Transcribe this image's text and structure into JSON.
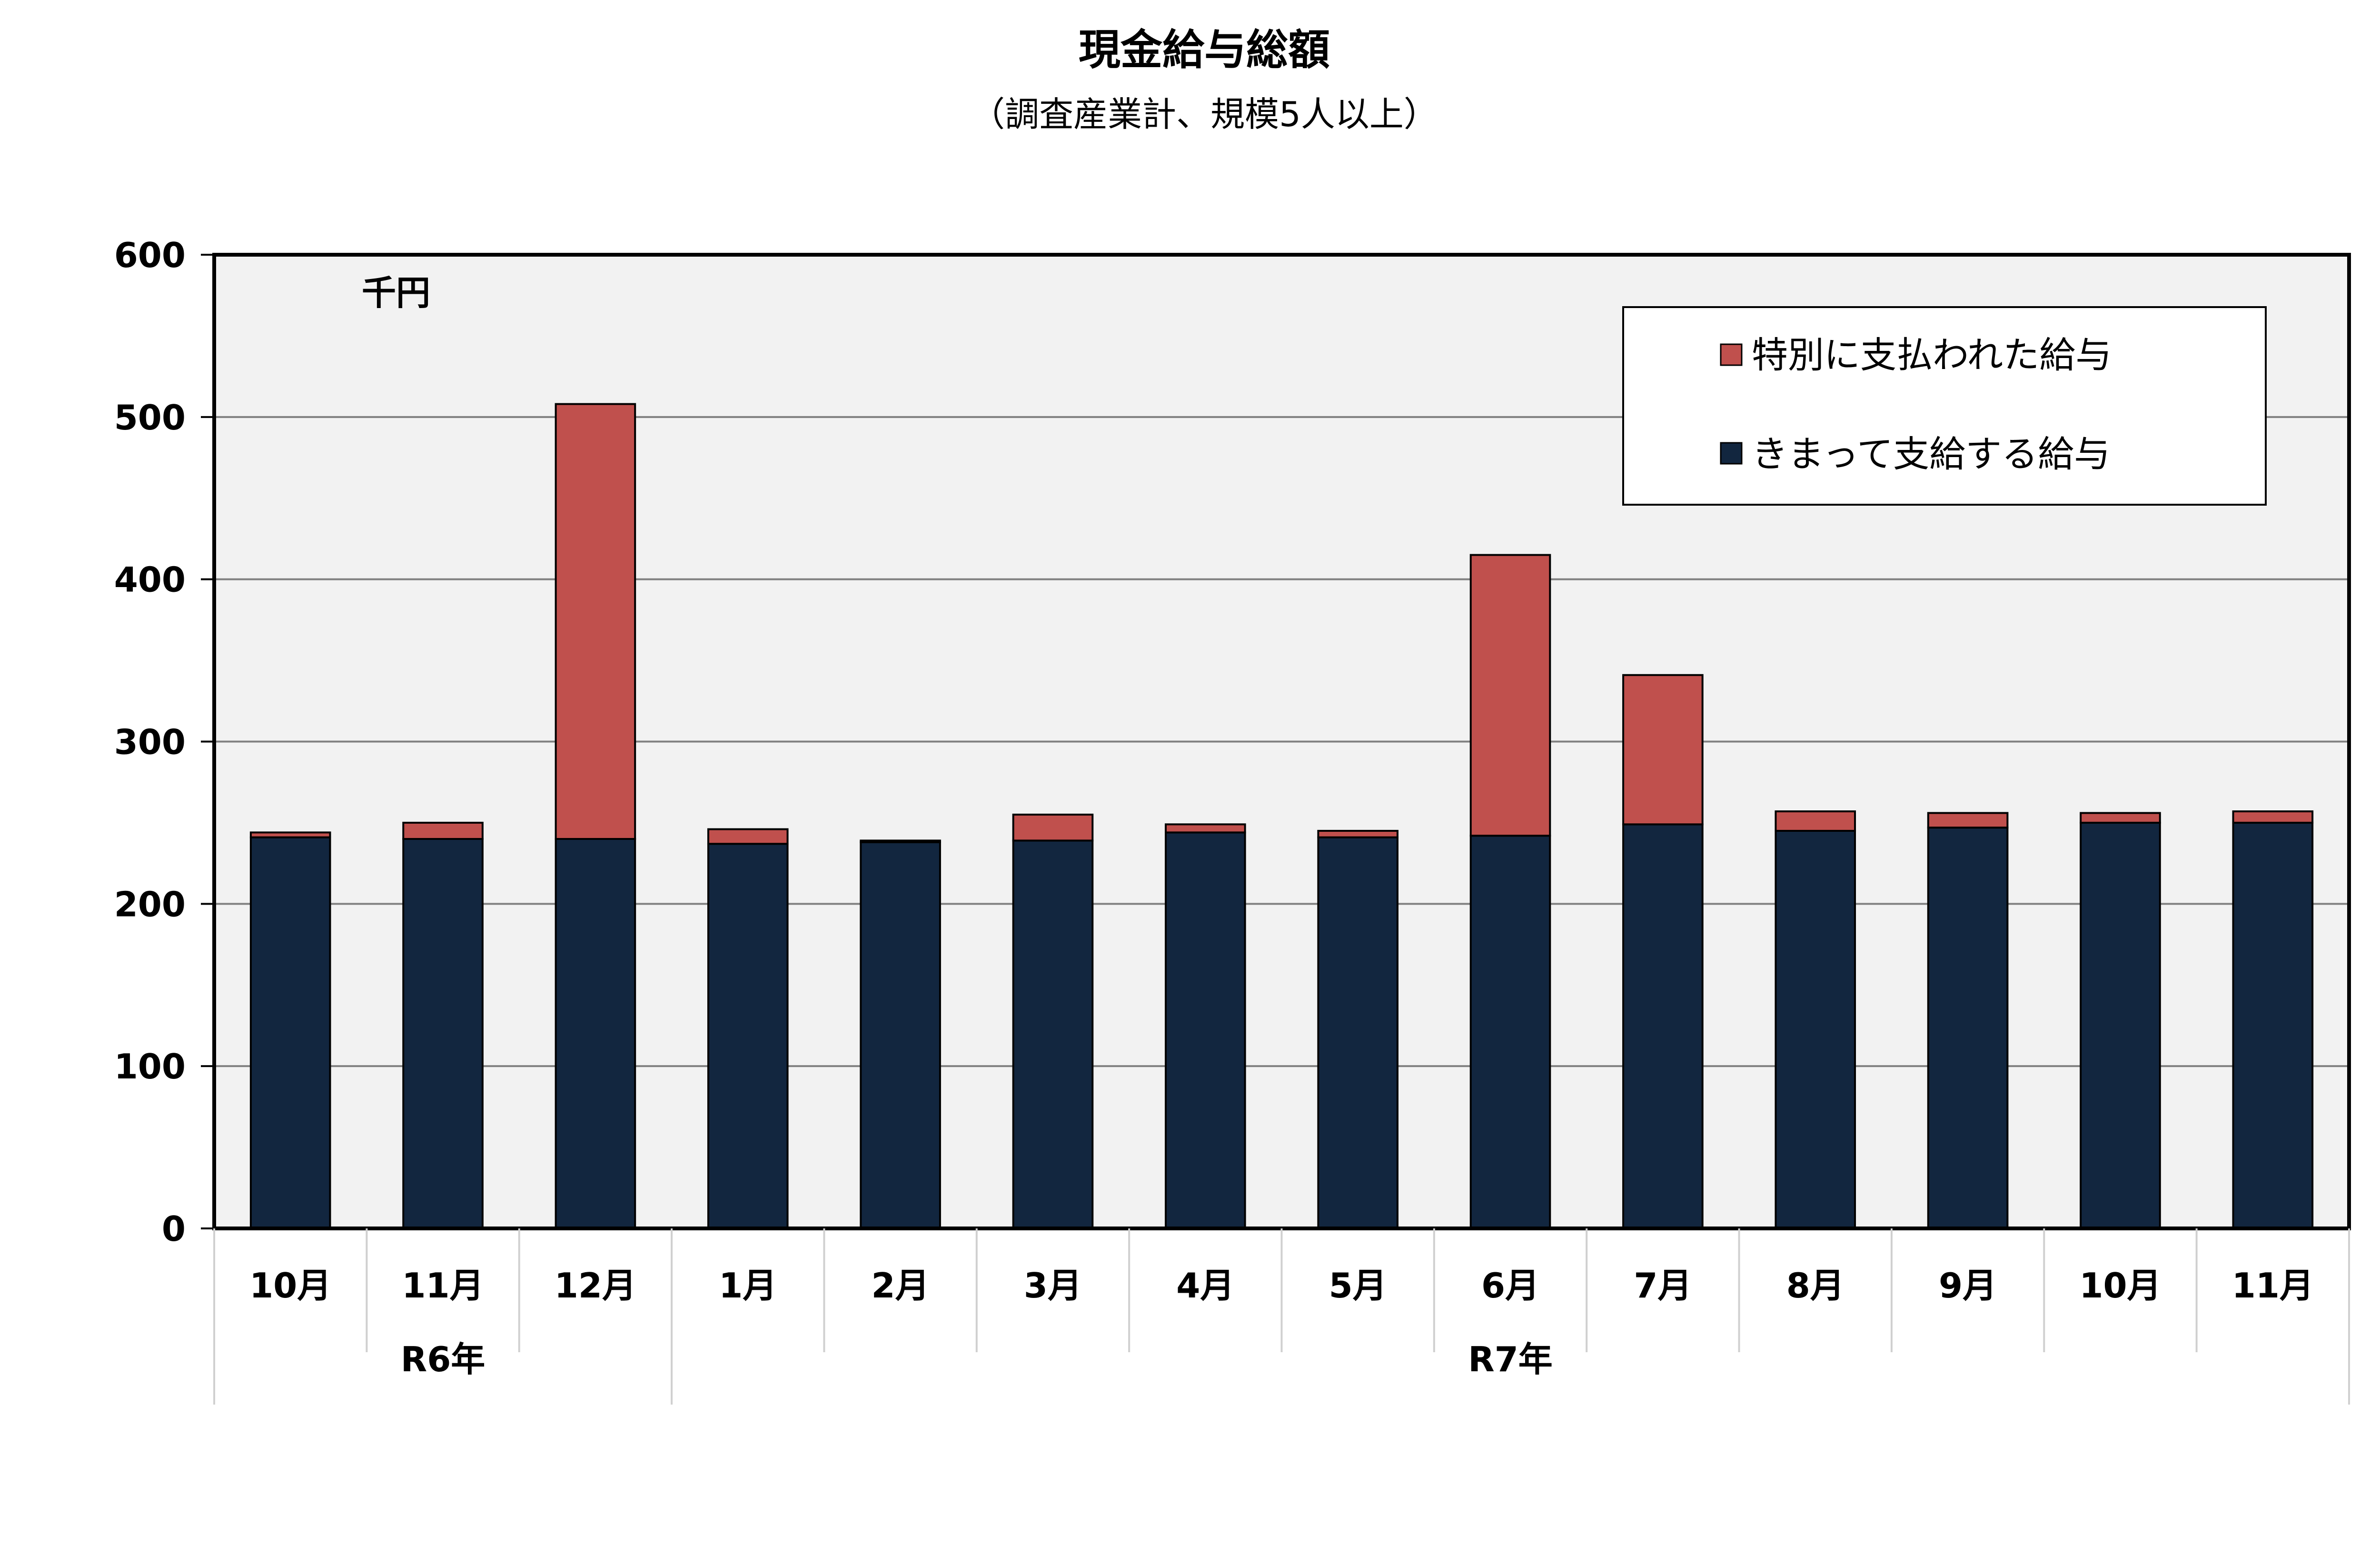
{
  "chart_data": {
    "type": "bar",
    "stacked": true,
    "title": "現金給与総額",
    "subtitle": "（調査産業計、規模5人以上）",
    "unit_label": "千円",
    "categories": [
      "10月",
      "11月",
      "12月",
      "1月",
      "2月",
      "3月",
      "4月",
      "5月",
      "6月",
      "7月",
      "8月",
      "9月",
      "10月",
      "11月"
    ],
    "year_groups": [
      {
        "label": "R6年",
        "count": 3
      },
      {
        "label": "R7年",
        "count": 11
      }
    ],
    "series": [
      {
        "name": "きまって支給する給与",
        "color": "#12263f",
        "values": [
          241,
          240,
          240,
          237,
          238,
          239,
          244,
          241,
          242,
          249,
          245,
          247,
          250,
          250
        ]
      },
      {
        "name": "特別に支払われた給与",
        "color": "#c0504d",
        "values": [
          3,
          10,
          268,
          9,
          1,
          16,
          5,
          4,
          173,
          92,
          12,
          9,
          6,
          7
        ]
      }
    ],
    "ylim": [
      0,
      600
    ],
    "yticks": [
      0,
      100,
      200,
      300,
      400,
      500,
      600
    ],
    "grid": true,
    "legend_position": "top-right",
    "plot_background": "#f2f2f2"
  }
}
